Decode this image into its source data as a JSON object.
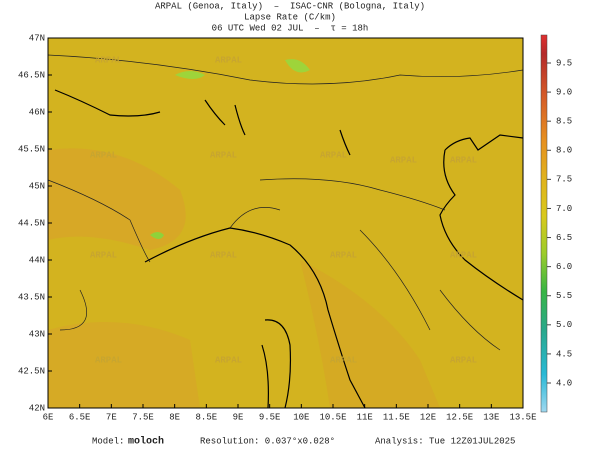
{
  "header": {
    "line1": "ARPAL (Genoa, Italy)  –  ISAC-CNR (Bologna, Italy)",
    "line2": "Lapse Rate (C/km)",
    "line3": "06 UTC Wed 02 JUL  –  τ = 18h"
  },
  "map": {
    "lon_labels": [
      "6E",
      "6.5E",
      "7E",
      "7.5E",
      "8E",
      "8.5E",
      "9E",
      "9.5E",
      "10E",
      "10.5E",
      "11E",
      "11.5E",
      "12E",
      "12.5E",
      "13E",
      "13.5E"
    ],
    "lat_labels": [
      "47N",
      "46.5N",
      "46N",
      "45.5N",
      "45N",
      "44.5N",
      "44N",
      "43.5N",
      "43N",
      "42.5N",
      "42N"
    ],
    "watermark": "ARPAL"
  },
  "colorbar": {
    "labels": [
      "4.0",
      "4.5",
      "5.0",
      "5.5",
      "6.0",
      "6.5",
      "7.0",
      "7.5",
      "8.0",
      "8.5",
      "9.0",
      "9.5"
    ]
  },
  "footer": {
    "model_label": "Model:",
    "model": "moloch",
    "resolution": "Resolution: 0.037°x0.028°",
    "analysis": "Analysis: Tue 12Z01JUL2025"
  }
}
